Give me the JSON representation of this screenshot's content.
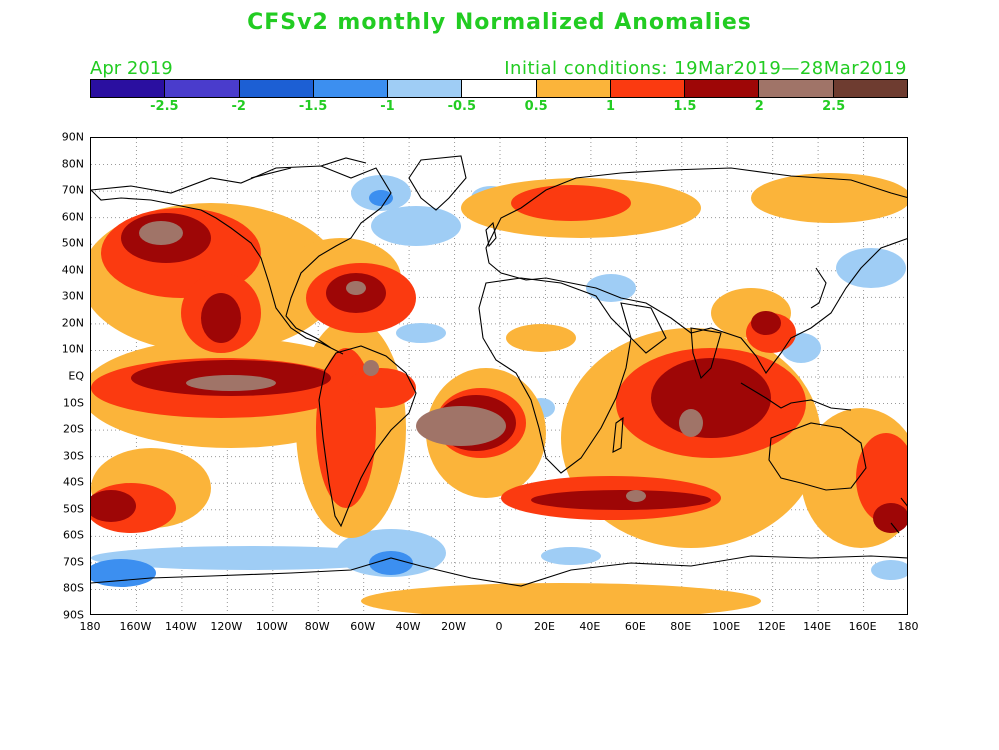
{
  "title": "CFSv2 monthly Normalized Anomalies",
  "month_label": "Apr 2019",
  "initial_conditions": "Initial conditions: 19Mar2019—28Mar2019",
  "colorbar": {
    "colors": [
      "#2a0fa0",
      "#4a3ccc",
      "#1c5fd4",
      "#3c8ff0",
      "#9fcdf5",
      "#ffffff",
      "#fbb43a",
      "#fb3a10",
      "#9e0606",
      "#a07468",
      "#6e3c30"
    ],
    "labels": [
      "-2.5",
      "-2",
      "-1.5",
      "-1",
      "-0.5",
      "0.5",
      "1",
      "1.5",
      "2",
      "2.5"
    ]
  },
  "y_ticks": [
    "90N",
    "80N",
    "70N",
    "60N",
    "50N",
    "40N",
    "30N",
    "20N",
    "10N",
    "EQ",
    "10S",
    "20S",
    "30S",
    "40S",
    "50S",
    "60S",
    "70S",
    "80S",
    "90S"
  ],
  "x_ticks": [
    "180",
    "160W",
    "140W",
    "120W",
    "100W",
    "80W",
    "60W",
    "40W",
    "20W",
    "0",
    "20E",
    "40E",
    "60E",
    "80E",
    "100E",
    "120E",
    "140E",
    "160E",
    "180"
  ]
}
